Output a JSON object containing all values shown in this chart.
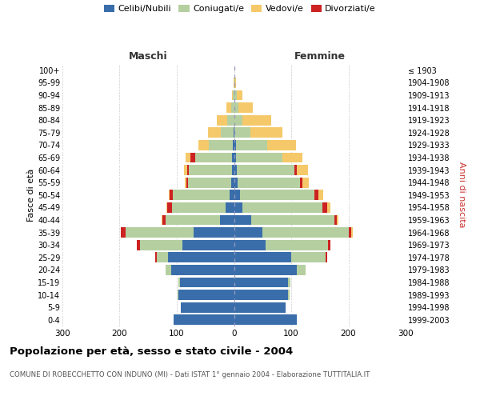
{
  "age_groups": [
    "0-4",
    "5-9",
    "10-14",
    "15-19",
    "20-24",
    "25-29",
    "30-34",
    "35-39",
    "40-44",
    "45-49",
    "50-54",
    "55-59",
    "60-64",
    "65-69",
    "70-74",
    "75-79",
    "80-84",
    "85-89",
    "90-94",
    "95-99",
    "100+"
  ],
  "birth_years": [
    "1999-2003",
    "1994-1998",
    "1989-1993",
    "1984-1988",
    "1979-1983",
    "1974-1978",
    "1969-1973",
    "1964-1968",
    "1959-1963",
    "1954-1958",
    "1949-1953",
    "1944-1948",
    "1939-1943",
    "1934-1938",
    "1929-1933",
    "1924-1928",
    "1919-1923",
    "1914-1918",
    "1909-1913",
    "1904-1908",
    "≤ 1903"
  ],
  "maschi": {
    "celibi": [
      105,
      93,
      97,
      95,
      110,
      115,
      90,
      70,
      25,
      14,
      7,
      5,
      4,
      3,
      2,
      1,
      0,
      0,
      0,
      0,
      0
    ],
    "coniugati": [
      0,
      0,
      2,
      2,
      10,
      20,
      75,
      120,
      95,
      95,
      100,
      75,
      75,
      65,
      42,
      22,
      12,
      5,
      2,
      0,
      0
    ],
    "vedovi": [
      0,
      0,
      0,
      0,
      0,
      0,
      0,
      0,
      1,
      1,
      2,
      3,
      5,
      8,
      18,
      22,
      18,
      8,
      2,
      1,
      0
    ],
    "divorziati": [
      0,
      0,
      0,
      0,
      0,
      3,
      5,
      8,
      5,
      8,
      5,
      3,
      3,
      8,
      0,
      0,
      0,
      0,
      0,
      0,
      0
    ]
  },
  "femmine": {
    "nubili": [
      110,
      90,
      95,
      95,
      110,
      100,
      55,
      50,
      30,
      15,
      10,
      6,
      5,
      4,
      3,
      1,
      0,
      0,
      0,
      0,
      0
    ],
    "coniugate": [
      0,
      0,
      2,
      3,
      15,
      60,
      110,
      150,
      145,
      140,
      130,
      110,
      100,
      80,
      55,
      28,
      15,
      8,
      5,
      2,
      0
    ],
    "vedove": [
      0,
      0,
      0,
      0,
      0,
      0,
      0,
      2,
      3,
      5,
      8,
      12,
      20,
      35,
      50,
      55,
      50,
      25,
      10,
      2,
      0
    ],
    "divorziate": [
      0,
      0,
      0,
      0,
      0,
      3,
      3,
      5,
      5,
      8,
      8,
      3,
      5,
      0,
      0,
      0,
      0,
      0,
      0,
      0,
      0
    ]
  },
  "colors": {
    "celibi": "#3a6eab",
    "coniugati": "#b5cfa0",
    "vedovi": "#f5c96a",
    "divorziati": "#cc2222"
  },
  "title": "Popolazione per età, sesso e stato civile - 2004",
  "subtitle": "COMUNE DI ROBECCHETTO CON INDUNO (MI) - Dati ISTAT 1° gennaio 2004 - Elaborazione TUTTITALIA.IT",
  "ylabel_left": "Fasce di età",
  "ylabel_right": "Anni di nascita",
  "xlabel_maschi": "Maschi",
  "xlabel_femmine": "Femmine",
  "xlim": 300,
  "bg_color": "#ffffff",
  "grid_color": "#cccccc",
  "bar_height": 0.82,
  "legend_labels": [
    "Celibi/Nubili",
    "Coniugati/e",
    "Vedovi/e",
    "Divorziati/e"
  ]
}
